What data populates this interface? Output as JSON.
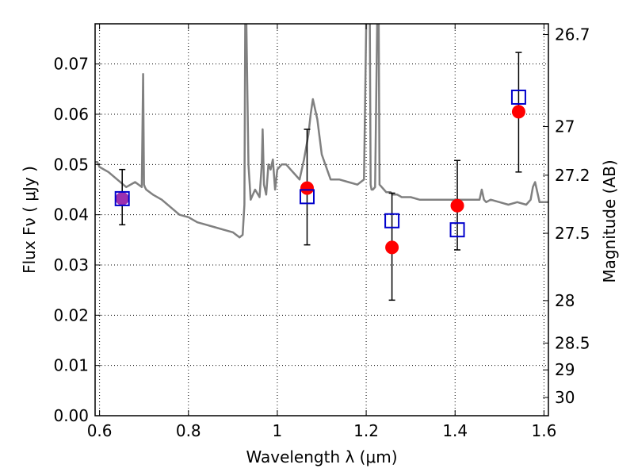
{
  "chart_data": {
    "type": "scatter",
    "title": "",
    "xlabel": "Wavelength  λ (μm)",
    "ylabel": "Flux  Fν  ( μJy )",
    "y2label": "Magnitude (AB)",
    "xlim": [
      0.59,
      1.61
    ],
    "ylim": [
      0.0,
      0.078
    ],
    "grid": true,
    "x_ticks": [
      0.6,
      0.8,
      1.0,
      1.2,
      1.4,
      1.6
    ],
    "x_tick_labels": [
      "0.6",
      "0.8",
      "1",
      "1.2",
      "1.4",
      "1.6"
    ],
    "y_ticks": [
      0.0,
      0.01,
      0.02,
      0.03,
      0.04,
      0.05,
      0.06,
      0.07
    ],
    "y_tick_labels": [
      "0.00",
      "0.01",
      "0.02",
      "0.03",
      "0.04",
      "0.05",
      "0.06",
      "0.07"
    ],
    "mag_ticks": [
      26.7,
      27,
      27.2,
      27.5,
      28,
      28.5,
      29,
      30
    ],
    "mag_tick_labels": [
      "26.7",
      "27",
      "27.2",
      "27.5",
      "28",
      "28.5",
      "29",
      "30"
    ],
    "series": [
      {
        "kind": "model_spectrum",
        "color": "#808080",
        "x": [
          0.59,
          0.595,
          0.6,
          0.62,
          0.64,
          0.66,
          0.68,
          0.695,
          0.698,
          0.7,
          0.702,
          0.705,
          0.72,
          0.74,
          0.76,
          0.78,
          0.8,
          0.82,
          0.84,
          0.86,
          0.88,
          0.9,
          0.915,
          0.922,
          0.926,
          0.928,
          0.93,
          0.935,
          0.94,
          0.945,
          0.95,
          0.96,
          0.965,
          0.967,
          0.97,
          0.975,
          0.98,
          0.985,
          0.99,
          0.995,
          1.0,
          1.01,
          1.02,
          1.03,
          1.04,
          1.05,
          1.06,
          1.07,
          1.075,
          1.08,
          1.09,
          1.1,
          1.12,
          1.14,
          1.16,
          1.18,
          1.195,
          1.2,
          1.202,
          1.205,
          1.208,
          1.21,
          1.212,
          1.215,
          1.22,
          1.225,
          1.228,
          1.23,
          1.235,
          1.24,
          1.245,
          1.25,
          1.255,
          1.26,
          1.27,
          1.28,
          1.3,
          1.32,
          1.34,
          1.36,
          1.38,
          1.4,
          1.42,
          1.44,
          1.455,
          1.46,
          1.465,
          1.47,
          1.48,
          1.5,
          1.52,
          1.54,
          1.56,
          1.57,
          1.575,
          1.58,
          1.59,
          1.61
        ],
        "y": [
          0.0505,
          0.0505,
          0.0495,
          0.0485,
          0.047,
          0.0455,
          0.0465,
          0.0455,
          0.068,
          0.046,
          0.0455,
          0.045,
          0.044,
          0.043,
          0.0415,
          0.04,
          0.0395,
          0.0385,
          0.038,
          0.0375,
          0.037,
          0.0365,
          0.0355,
          0.036,
          0.042,
          0.08,
          0.08,
          0.05,
          0.043,
          0.044,
          0.045,
          0.0435,
          0.05,
          0.057,
          0.046,
          0.044,
          0.05,
          0.049,
          0.051,
          0.045,
          0.049,
          0.05,
          0.05,
          0.049,
          0.048,
          0.047,
          0.051,
          0.056,
          0.06,
          0.063,
          0.059,
          0.052,
          0.047,
          0.047,
          0.0465,
          0.046,
          0.047,
          0.078,
          0.08,
          0.08,
          0.08,
          0.046,
          0.045,
          0.045,
          0.0455,
          0.08,
          0.08,
          0.046,
          0.0455,
          0.045,
          0.0445,
          0.0445,
          0.0445,
          0.044,
          0.044,
          0.0435,
          0.0435,
          0.043,
          0.043,
          0.043,
          0.043,
          0.043,
          0.043,
          0.043,
          0.043,
          0.045,
          0.043,
          0.0425,
          0.043,
          0.0425,
          0.042,
          0.0425,
          0.042,
          0.043,
          0.0455,
          0.0465,
          0.0425,
          0.0425
        ]
      },
      {
        "kind": "observed_with_errorbars",
        "color": "#ff0000",
        "x": [
          0.651,
          1.067,
          1.258,
          1.405,
          1.543
        ],
        "y": [
          0.0432,
          0.0453,
          0.0335,
          0.0418,
          0.0605
        ],
        "yerr_low": [
          0.038,
          0.034,
          0.023,
          0.033,
          0.0485
        ],
        "yerr_high": [
          0.049,
          0.057,
          0.0443,
          0.0508,
          0.0723
        ]
      },
      {
        "kind": "model_photometry",
        "color": "#0000cc",
        "x": [
          0.651,
          1.067,
          1.258,
          1.405,
          1.543
        ],
        "y": [
          0.0432,
          0.0436,
          0.0388,
          0.037,
          0.0634
        ]
      }
    ],
    "overlap_color": "#9b30b0"
  }
}
